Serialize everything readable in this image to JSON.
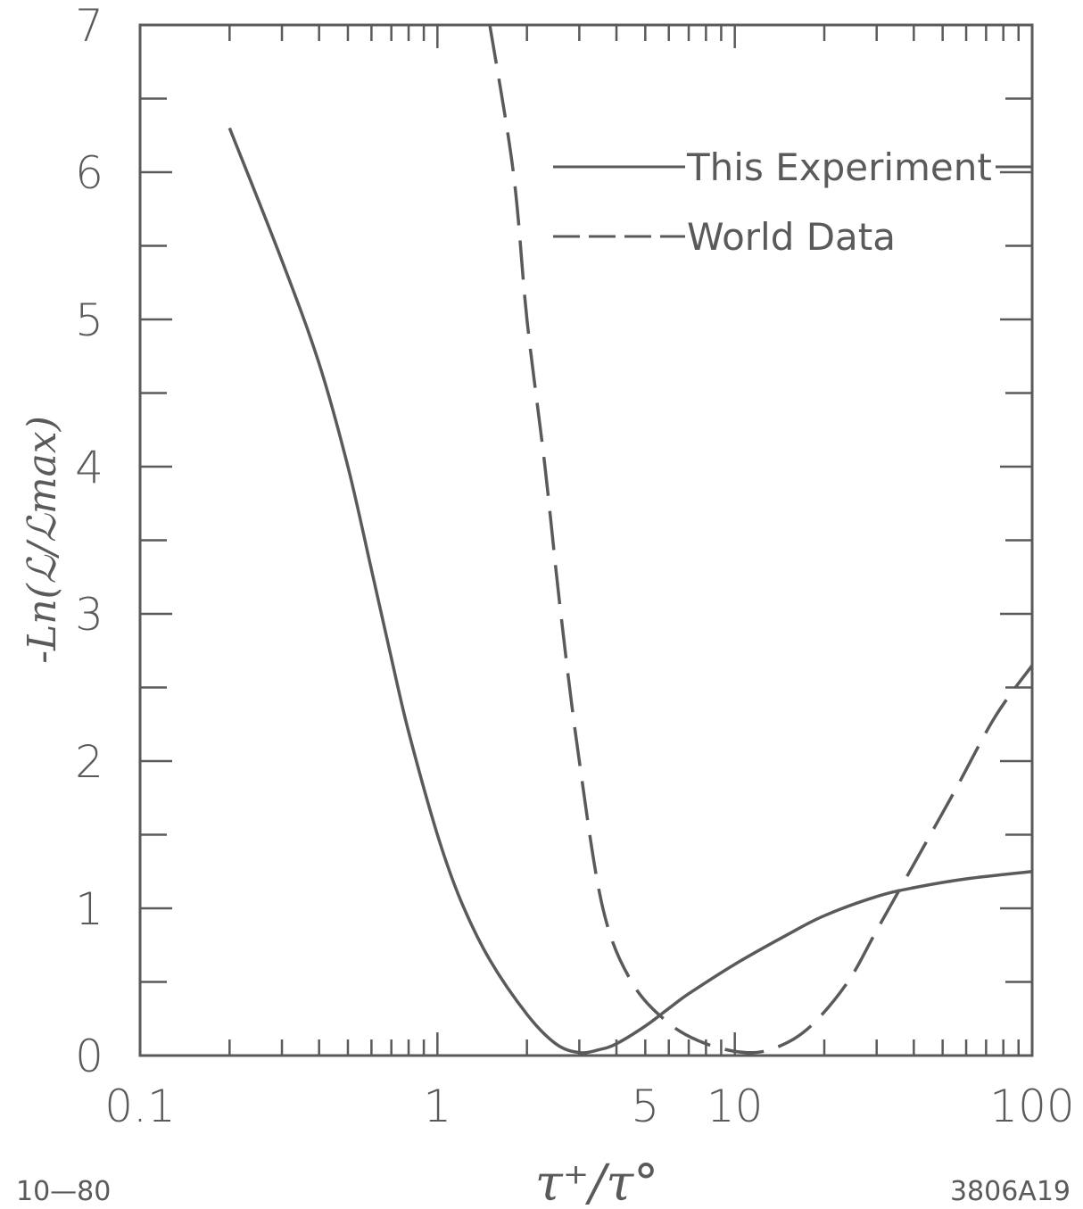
{
  "chart_data": {
    "type": "line",
    "xlabel": "τ⁺/τ°",
    "ylabel": "-Ln(ℒ/ℒmax)",
    "xscale": "log",
    "xlim": [
      0.1,
      100
    ],
    "ylim": [
      0,
      7
    ],
    "x_tick_labels": [
      {
        "value": 0.1,
        "label": "0.1"
      },
      {
        "value": 1,
        "label": "1"
      },
      {
        "value": 5,
        "label": "5"
      },
      {
        "value": 10,
        "label": "10"
      },
      {
        "value": 100,
        "label": "100"
      }
    ],
    "y_tick_labels": [
      {
        "value": 0,
        "label": "0"
      },
      {
        "value": 1,
        "label": "1"
      },
      {
        "value": 2,
        "label": "2"
      },
      {
        "value": 3,
        "label": "3"
      },
      {
        "value": 4,
        "label": "4"
      },
      {
        "value": 5,
        "label": "5"
      },
      {
        "value": 6,
        "label": "6"
      },
      {
        "value": 7,
        "label": "7"
      }
    ],
    "y_minor_step": 0.5,
    "grid": false,
    "legend_position": "top-right",
    "series": [
      {
        "name": "This Experiment",
        "style": "solid",
        "points": [
          [
            0.2,
            6.3
          ],
          [
            0.3,
            5.4
          ],
          [
            0.4,
            4.7
          ],
          [
            0.5,
            4.0
          ],
          [
            0.6,
            3.3
          ],
          [
            0.7,
            2.7
          ],
          [
            0.8,
            2.2
          ],
          [
            1.0,
            1.5
          ],
          [
            1.2,
            1.05
          ],
          [
            1.5,
            0.65
          ],
          [
            2.0,
            0.28
          ],
          [
            2.5,
            0.08
          ],
          [
            3.0,
            0.02
          ],
          [
            3.5,
            0.04
          ],
          [
            4.0,
            0.08
          ],
          [
            5.0,
            0.2
          ],
          [
            6.0,
            0.32
          ],
          [
            7.0,
            0.42
          ],
          [
            10.0,
            0.62
          ],
          [
            15.0,
            0.82
          ],
          [
            20.0,
            0.95
          ],
          [
            30.0,
            1.08
          ],
          [
            40.0,
            1.14
          ],
          [
            60.0,
            1.2
          ],
          [
            100.0,
            1.25
          ]
        ]
      },
      {
        "name": "World Data",
        "style": "dashed",
        "points": [
          [
            1.5,
            7.0
          ],
          [
            1.8,
            6.0
          ],
          [
            2.0,
            5.0
          ],
          [
            2.3,
            4.0
          ],
          [
            2.6,
            3.0
          ],
          [
            3.0,
            2.0
          ],
          [
            3.6,
            1.0
          ],
          [
            4.5,
            0.5
          ],
          [
            6.0,
            0.22
          ],
          [
            8.0,
            0.08
          ],
          [
            11.0,
            0.02
          ],
          [
            14.0,
            0.06
          ],
          [
            18.0,
            0.2
          ],
          [
            24.0,
            0.5
          ],
          [
            30.0,
            0.85
          ],
          [
            40.0,
            1.3
          ],
          [
            55.0,
            1.8
          ],
          [
            75.0,
            2.3
          ],
          [
            100.0,
            2.65
          ]
        ]
      }
    ]
  },
  "footer": {
    "left_label": "10—80",
    "right_label": "3806A19"
  },
  "colors": {
    "ink": "#5a5a5a",
    "background": "#ffffff"
  }
}
